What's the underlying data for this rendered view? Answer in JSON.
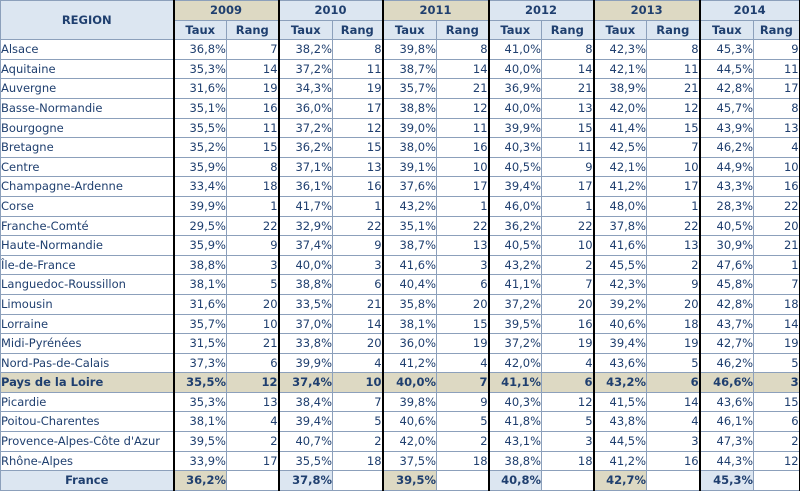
{
  "header": {
    "region_label": "REGION",
    "years": [
      "2009",
      "2010",
      "2011",
      "2012",
      "2013",
      "2014"
    ],
    "taux_label": "Taux",
    "rang_label": "Rang"
  },
  "rows": [
    {
      "region": "Alsace",
      "v": [
        "36,8%",
        "7",
        "38,2%",
        "8",
        "39,8%",
        "8",
        "41,0%",
        "8",
        "42,3%",
        "8",
        "45,3%",
        "9"
      ]
    },
    {
      "region": "Aquitaine",
      "v": [
        "35,3%",
        "14",
        "37,2%",
        "11",
        "38,7%",
        "14",
        "40,0%",
        "14",
        "42,1%",
        "11",
        "44,5%",
        "11"
      ]
    },
    {
      "region": "Auvergne",
      "v": [
        "31,6%",
        "19",
        "34,3%",
        "19",
        "35,7%",
        "21",
        "36,9%",
        "21",
        "38,9%",
        "21",
        "42,8%",
        "17"
      ]
    },
    {
      "region": "Basse-Normandie",
      "v": [
        "35,1%",
        "16",
        "36,0%",
        "17",
        "38,8%",
        "12",
        "40,0%",
        "13",
        "42,0%",
        "12",
        "45,7%",
        "8"
      ]
    },
    {
      "region": "Bourgogne",
      "v": [
        "35,5%",
        "11",
        "37,2%",
        "12",
        "39,0%",
        "11",
        "39,9%",
        "15",
        "41,4%",
        "15",
        "43,9%",
        "13"
      ]
    },
    {
      "region": "Bretagne",
      "v": [
        "35,2%",
        "15",
        "36,2%",
        "15",
        "38,0%",
        "16",
        "40,3%",
        "11",
        "42,5%",
        "7",
        "46,2%",
        "4"
      ]
    },
    {
      "region": "Centre",
      "v": [
        "35,9%",
        "8",
        "37,1%",
        "13",
        "39,1%",
        "10",
        "40,5%",
        "9",
        "42,1%",
        "10",
        "44,9%",
        "10"
      ]
    },
    {
      "region": "Champagne-Ardenne",
      "v": [
        "33,4%",
        "18",
        "36,1%",
        "16",
        "37,6%",
        "17",
        "39,4%",
        "17",
        "41,2%",
        "17",
        "43,3%",
        "16"
      ]
    },
    {
      "region": "Corse",
      "v": [
        "39,9%",
        "1",
        "41,7%",
        "1",
        "43,2%",
        "1",
        "46,0%",
        "1",
        "48,0%",
        "1",
        "28,3%",
        "22"
      ]
    },
    {
      "region": "Franche-Comté",
      "v": [
        "29,5%",
        "22",
        "32,9%",
        "22",
        "35,1%",
        "22",
        "36,2%",
        "22",
        "37,8%",
        "22",
        "40,5%",
        "20"
      ]
    },
    {
      "region": "Haute-Normandie",
      "v": [
        "35,9%",
        "9",
        "37,4%",
        "9",
        "38,7%",
        "13",
        "40,5%",
        "10",
        "41,6%",
        "13",
        "30,9%",
        "21"
      ]
    },
    {
      "region": "Île-de-France",
      "v": [
        "38,8%",
        "3",
        "40,0%",
        "3",
        "41,6%",
        "3",
        "43,2%",
        "2",
        "45,5%",
        "2",
        "47,6%",
        "1"
      ]
    },
    {
      "region": "Languedoc-Roussillon",
      "v": [
        "38,1%",
        "5",
        "38,8%",
        "6",
        "40,4%",
        "6",
        "41,1%",
        "7",
        "42,3%",
        "9",
        "45,8%",
        "7"
      ]
    },
    {
      "region": "Limousin",
      "v": [
        "31,6%",
        "20",
        "33,5%",
        "21",
        "35,8%",
        "20",
        "37,2%",
        "20",
        "39,2%",
        "20",
        "42,8%",
        "18"
      ]
    },
    {
      "region": "Lorraine",
      "v": [
        "35,7%",
        "10",
        "37,0%",
        "14",
        "38,1%",
        "15",
        "39,5%",
        "16",
        "40,6%",
        "18",
        "43,7%",
        "14"
      ]
    },
    {
      "region": "Midi-Pyrénées",
      "v": [
        "31,5%",
        "21",
        "33,8%",
        "20",
        "36,0%",
        "19",
        "37,2%",
        "19",
        "39,4%",
        "19",
        "42,7%",
        "19"
      ]
    },
    {
      "region": "Nord-Pas-de-Calais",
      "v": [
        "37,3%",
        "6",
        "39,9%",
        "4",
        "41,2%",
        "4",
        "42,0%",
        "4",
        "43,6%",
        "5",
        "46,2%",
        "5"
      ]
    },
    {
      "region": "Pays de la Loire",
      "highlight": true,
      "v": [
        "35,5%",
        "12",
        "37,4%",
        "10",
        "40,0%",
        "7",
        "41,1%",
        "6",
        "43,2%",
        "6",
        "46,6%",
        "3"
      ]
    },
    {
      "region": "Picardie",
      "v": [
        "35,3%",
        "13",
        "38,4%",
        "7",
        "39,8%",
        "9",
        "40,3%",
        "12",
        "41,5%",
        "14",
        "43,6%",
        "15"
      ]
    },
    {
      "region": "Poitou-Charentes",
      "v": [
        "38,1%",
        "4",
        "39,4%",
        "5",
        "40,6%",
        "5",
        "41,8%",
        "5",
        "43,8%",
        "4",
        "46,1%",
        "6"
      ]
    },
    {
      "region": "Provence-Alpes-Côte d'Azur",
      "v": [
        "39,5%",
        "2",
        "40,7%",
        "2",
        "42,0%",
        "2",
        "43,1%",
        "3",
        "44,5%",
        "3",
        "47,3%",
        "2"
      ]
    },
    {
      "region": "Rhône-Alpes",
      "v": [
        "33,9%",
        "17",
        "35,5%",
        "18",
        "37,5%",
        "18",
        "38,8%",
        "18",
        "41,2%",
        "16",
        "44,3%",
        "12"
      ]
    }
  ],
  "total": {
    "region": "France",
    "v": [
      "36,2%",
      "37,8%",
      "39,5%",
      "40,8%",
      "42,7%",
      "45,3%"
    ]
  },
  "colors": {
    "header_blue": "#dce6f1",
    "header_gold": "#ddd9c3",
    "text": "#1f3f6f"
  }
}
